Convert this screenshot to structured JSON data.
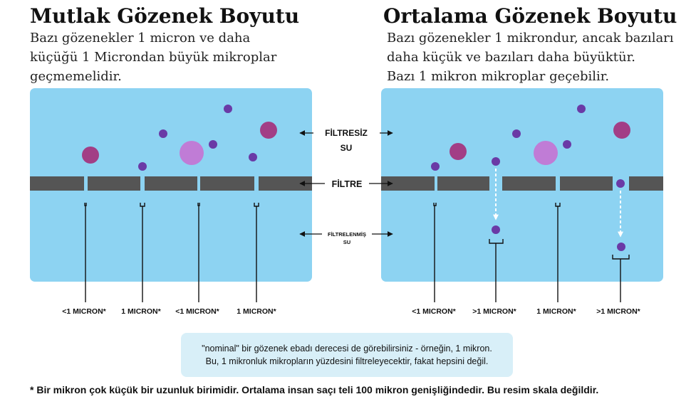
{
  "left": {
    "title": "Mutlak Gözenek Boyutu",
    "subtitle": "Bazı gözenekler 1 micron ve daha\nküçüğü 1 Microndan büyük mikroplar\ngeçmemelidir.",
    "size_labels": [
      "<1 MICRON*",
      "1 MICRON*",
      "<1 MICRON*",
      "1 MICRON*"
    ]
  },
  "right": {
    "title": "Ortalama Gözenek Boyutu",
    "subtitle": "Bazı gözenekler 1 mikrondur, ancak bazıları\ndaha küçük ve bazıları daha büyüktür.\nBazı 1 mikron mikroplar geçebilir.",
    "size_labels": [
      "<1 MICRON*",
      ">1 MICRON*",
      "1 MICRON*",
      ">1 MICRON*"
    ]
  },
  "center_labels": {
    "unfiltered_line1": "FİLTRESİZ",
    "unfiltered_line2": "SU",
    "filter": "FİLTRE",
    "filtered_line1": "FİLTRELENMİŞ",
    "filtered_line2": "SU"
  },
  "colors": {
    "water": "#8dd3f2",
    "filter": "#555555",
    "microbe_dark": "#a23e86",
    "microbe_small": "#6a3aa6",
    "microbe_light": "#c07cd6"
  },
  "note": {
    "line1": "\"nominal\" bir gözenek ebadı derecesi de görebilirsiniz - örneğin, 1 mikron.",
    "line2": "Bu, 1 mikronluk mikropların yüzdesini filtreleyecektir, fakat hepsini değil."
  },
  "footnote": "* Bir mikron çok küçük bir uzunluk birimidir. Ortalama insan saçı teli 100 mikron genişliğindedir. Bu resim skala değildir."
}
